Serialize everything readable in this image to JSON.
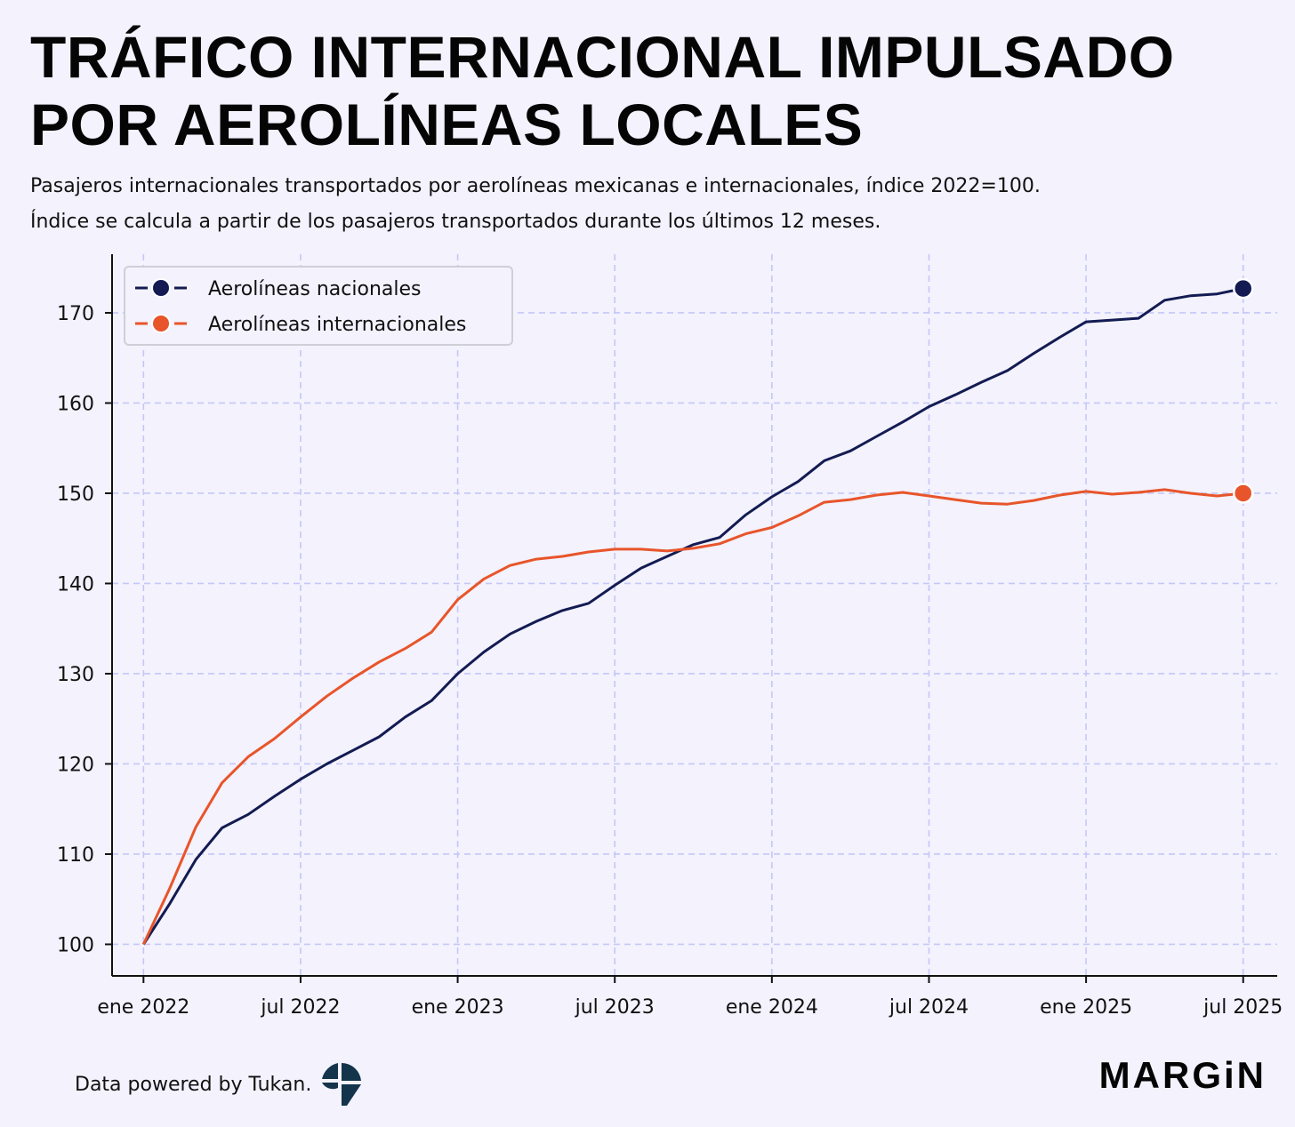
{
  "header": {
    "title_line1": "TRÁFICO INTERNACIONAL IMPULSADO",
    "title_line2": "POR AEROLÍNEAS LOCALES",
    "subtitle_line1": "Pasajeros internacionales transportados por aerolíneas mexicanas e internacionales, índice 2022=100.",
    "subtitle_line2": "Índice se calcula a partir de los pasajeros transportados durante los últimos 12 meses."
  },
  "footer": {
    "source_text": "Data powered by Tukan.",
    "brand": "MARGiN",
    "source_logo_icon": "tukan-logo-icon"
  },
  "colors": {
    "background": "#f3f2fd",
    "nacionales": "#131b52",
    "internacionales": "#e8552a",
    "grid": "#c5c7f7",
    "axis": "#111111"
  },
  "chart_data": {
    "type": "line",
    "title": "TRÁFICO INTERNACIONAL IMPULSADO POR AEROLÍNEAS LOCALES",
    "xlabel": "",
    "ylabel": "",
    "ylim": [
      96.5,
      176.5
    ],
    "xlim_months": [
      -1.2,
      43.3
    ],
    "x_ticks": [
      {
        "month": 0,
        "label": "ene 2022"
      },
      {
        "month": 6,
        "label": "jul 2022"
      },
      {
        "month": 12,
        "label": "ene 2023"
      },
      {
        "month": 18,
        "label": "jul 2023"
      },
      {
        "month": 24,
        "label": "ene 2024"
      },
      {
        "month": 30,
        "label": "jul 2024"
      },
      {
        "month": 36,
        "label": "ene 2025"
      },
      {
        "month": 42,
        "label": "jul 2025"
      }
    ],
    "y_ticks": [
      100,
      110,
      120,
      130,
      140,
      150,
      160,
      170
    ],
    "grid": true,
    "legend_position": "top-left",
    "x_months": [
      0,
      1,
      2,
      3,
      4,
      5,
      6,
      7,
      8,
      9,
      10,
      11,
      12,
      13,
      14,
      15,
      16,
      17,
      18,
      19,
      20,
      21,
      22,
      23,
      24,
      25,
      26,
      27,
      28,
      29,
      30,
      31,
      32,
      33,
      34,
      35,
      36,
      37,
      38,
      39,
      40,
      41,
      42
    ],
    "series": [
      {
        "name": "Aerolíneas nacionales",
        "color": "#131b52",
        "values": [
          100,
          104.5,
          109.4,
          112.9,
          114.4,
          116.4,
          118.3,
          120.0,
          121.5,
          123.0,
          125.2,
          127.0,
          130.0,
          132.4,
          134.4,
          135.8,
          137.0,
          137.8,
          139.8,
          141.7,
          143.0,
          144.3,
          145.1,
          147.6,
          149.6,
          151.3,
          153.6,
          154.7,
          156.3,
          157.9,
          159.6,
          160.9,
          162.3,
          163.6,
          165.5,
          167.3,
          169.0,
          169.2,
          169.4,
          171.4,
          171.9,
          172.1,
          172.7
        ]
      },
      {
        "name": "Aerolíneas internacionales",
        "color": "#e8552a",
        "values": [
          100,
          106.2,
          113.0,
          117.9,
          120.8,
          122.8,
          125.2,
          127.5,
          129.5,
          131.3,
          132.8,
          134.6,
          138.2,
          140.5,
          142.0,
          142.7,
          143.0,
          143.5,
          143.8,
          143.8,
          143.6,
          143.9,
          144.4,
          145.5,
          146.2,
          147.5,
          149.0,
          149.3,
          149.8,
          150.1,
          149.7,
          149.3,
          148.9,
          148.8,
          149.2,
          149.8,
          150.2,
          149.9,
          150.1,
          150.4,
          150.0,
          149.7,
          150.0
        ]
      }
    ]
  }
}
